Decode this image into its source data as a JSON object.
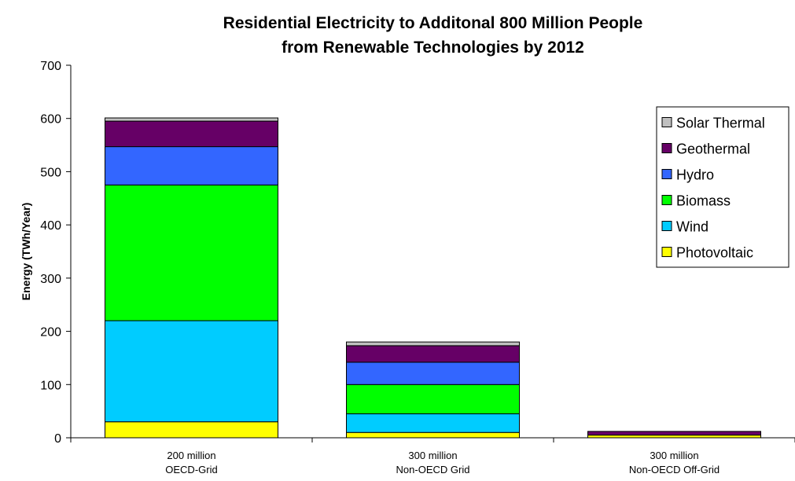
{
  "chart_data": {
    "type": "bar",
    "stacked": true,
    "title_lines": [
      "Residential Electricity to Additonal 800 Million People",
      "from Renewable Technologies by 2012"
    ],
    "ylabel": "Energy (TWh/Year)",
    "xlabel": "",
    "ylim": [
      0,
      700
    ],
    "yticks": [
      0,
      100,
      200,
      300,
      400,
      500,
      600,
      700
    ],
    "grid": false,
    "legend_position": "top-right",
    "categories": [
      [
        "200 million",
        "OECD-Grid"
      ],
      [
        "300 million",
        "Non-OECD Grid"
      ],
      [
        "300 million",
        "Non-OECD Off-Grid"
      ]
    ],
    "series": [
      {
        "name": "Photovoltaic",
        "color": "#FFFF00",
        "values": [
          30,
          10,
          5
        ]
      },
      {
        "name": "Wind",
        "color": "#00CCFF",
        "values": [
          190,
          35,
          0
        ]
      },
      {
        "name": "Biomass",
        "color": "#00FF00",
        "values": [
          255,
          55,
          0
        ]
      },
      {
        "name": "Hydro",
        "color": "#3366FF",
        "values": [
          72,
          42,
          0
        ]
      },
      {
        "name": "Geothermal",
        "color": "#660066",
        "values": [
          48,
          31,
          7
        ]
      },
      {
        "name": "Solar Thermal",
        "color": "#C0C0C0",
        "values": [
          6,
          7,
          0
        ]
      }
    ]
  }
}
